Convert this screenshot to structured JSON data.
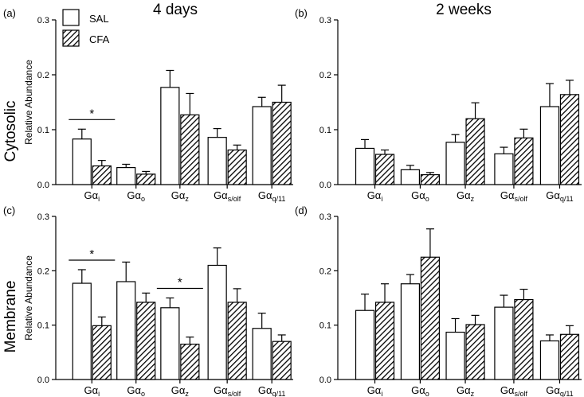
{
  "figure": {
    "column_titles": [
      "4 days",
      "2 weeks"
    ],
    "row_titles": [
      "Cytosolic",
      "Membrane"
    ],
    "ylabel": "Relative Abundance",
    "legend": {
      "items": [
        {
          "label": "SAL",
          "fill": "open"
        },
        {
          "label": "CFA",
          "fill": "hatched"
        }
      ]
    },
    "colors": {
      "bar_stroke": "#000000",
      "bar_open": "#ffffff",
      "hatch": "#000000",
      "background": "#ffffff"
    }
  },
  "chart_data": [
    {
      "panel": "(a)",
      "row": "Cytosolic",
      "column": "4 days",
      "type": "bar",
      "ylabel": "Relative Abundance",
      "ylim": [
        0,
        0.3
      ],
      "yticks": [
        "0.0",
        "0.1",
        "0.2",
        "0.3"
      ],
      "categories": [
        {
          "base": "Gα",
          "sub": "i"
        },
        {
          "base": "Gα",
          "sub": "o"
        },
        {
          "base": "Gα",
          "sub": "z"
        },
        {
          "base": "Gα",
          "sub": "s/olf"
        },
        {
          "base": "Gα",
          "sub": "q/11"
        }
      ],
      "series": [
        {
          "name": "SAL",
          "values": [
            0.083,
            0.031,
            0.177,
            0.086,
            0.142
          ],
          "errors": [
            0.018,
            0.006,
            0.031,
            0.016,
            0.017
          ]
        },
        {
          "name": "CFA",
          "values": [
            0.034,
            0.019,
            0.127,
            0.063,
            0.15
          ],
          "errors": [
            0.01,
            0.005,
            0.039,
            0.009,
            0.031
          ]
        }
      ],
      "significance": [
        {
          "category_index": 0,
          "label": "*"
        }
      ],
      "grid": false
    },
    {
      "panel": "(b)",
      "row": "Cytosolic",
      "column": "2 weeks",
      "type": "bar",
      "ylabel": "",
      "ylim": [
        0,
        0.3
      ],
      "yticks": [
        "0.0",
        "0.1",
        "0.2",
        "0.3"
      ],
      "categories": [
        {
          "base": "Gα",
          "sub": "i"
        },
        {
          "base": "Gα",
          "sub": "o"
        },
        {
          "base": "Gα",
          "sub": "z"
        },
        {
          "base": "Gα",
          "sub": "s/olf"
        },
        {
          "base": "Gα",
          "sub": "q/11"
        }
      ],
      "series": [
        {
          "name": "SAL",
          "values": [
            0.066,
            0.027,
            0.077,
            0.056,
            0.142
          ],
          "errors": [
            0.016,
            0.008,
            0.014,
            0.012,
            0.042
          ]
        },
        {
          "name": "CFA",
          "values": [
            0.055,
            0.018,
            0.12,
            0.085,
            0.164
          ],
          "errors": [
            0.008,
            0.004,
            0.029,
            0.016,
            0.026
          ]
        }
      ],
      "significance": [],
      "grid": false
    },
    {
      "panel": "(c)",
      "row": "Membrane",
      "column": "4 days",
      "type": "bar",
      "ylabel": "Relative Abundance",
      "ylim": [
        0,
        0.3
      ],
      "yticks": [
        "0.0",
        "0.1",
        "0.2",
        "0.3"
      ],
      "categories": [
        {
          "base": "Gα",
          "sub": "i"
        },
        {
          "base": "Gα",
          "sub": "o"
        },
        {
          "base": "Gα",
          "sub": "z"
        },
        {
          "base": "Gα",
          "sub": "s/olf"
        },
        {
          "base": "Gα",
          "sub": "q/11"
        }
      ],
      "series": [
        {
          "name": "SAL",
          "values": [
            0.177,
            0.18,
            0.132,
            0.21,
            0.094
          ],
          "errors": [
            0.025,
            0.036,
            0.018,
            0.032,
            0.028
          ]
        },
        {
          "name": "CFA",
          "values": [
            0.099,
            0.142,
            0.065,
            0.142,
            0.07
          ],
          "errors": [
            0.016,
            0.017,
            0.013,
            0.025,
            0.012
          ]
        }
      ],
      "significance": [
        {
          "category_index": 0,
          "label": "*"
        },
        {
          "category_index": 2,
          "label": "*"
        }
      ],
      "grid": false
    },
    {
      "panel": "(d)",
      "row": "Membrane",
      "column": "2 weeks",
      "type": "bar",
      "ylabel": "",
      "ylim": [
        0,
        0.3
      ],
      "yticks": [
        "0.0",
        "0.1",
        "0.2",
        "0.3"
      ],
      "categories": [
        {
          "base": "Gα",
          "sub": "i"
        },
        {
          "base": "Gα",
          "sub": "o"
        },
        {
          "base": "Gα",
          "sub": "z"
        },
        {
          "base": "Gα",
          "sub": "s/olf"
        },
        {
          "base": "Gα",
          "sub": "q/11"
        }
      ],
      "series": [
        {
          "name": "SAL",
          "values": [
            0.127,
            0.176,
            0.087,
            0.133,
            0.071
          ],
          "errors": [
            0.03,
            0.017,
            0.025,
            0.022,
            0.011
          ]
        },
        {
          "name": "CFA",
          "values": [
            0.142,
            0.225,
            0.101,
            0.147,
            0.083
          ],
          "errors": [
            0.034,
            0.052,
            0.017,
            0.019,
            0.016
          ]
        }
      ],
      "significance": [],
      "grid": false
    }
  ]
}
